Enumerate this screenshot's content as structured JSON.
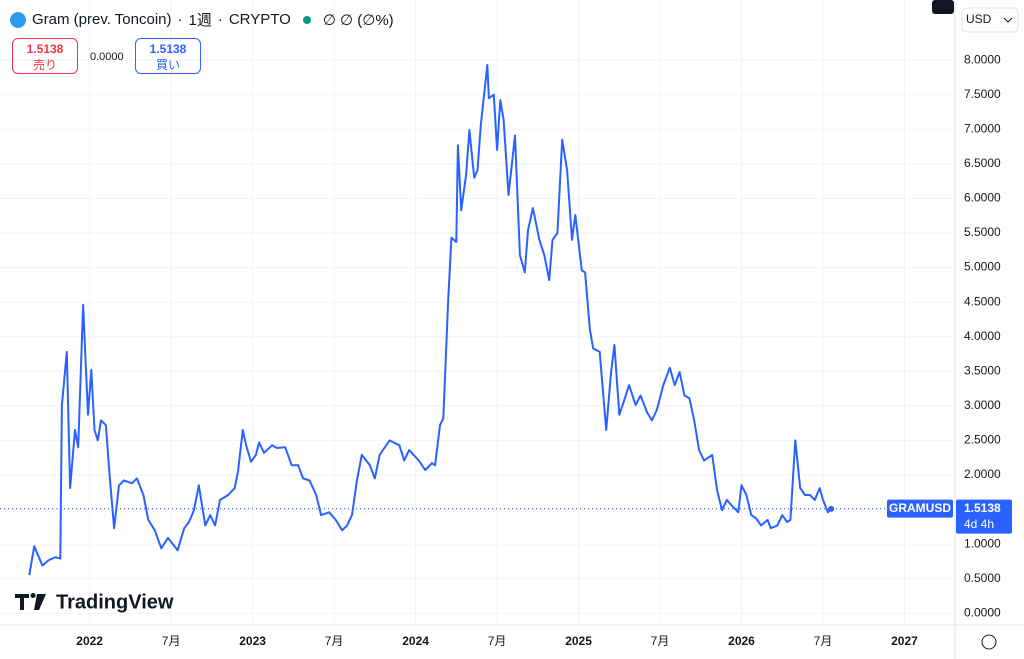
{
  "header": {
    "symbol": "Gram (prev. Toncoin)",
    "interval": "1週",
    "exchange": "CRYPTO",
    "ohlc": "∅ ∅ (∅%)",
    "sell_price": "1.5138",
    "sell_label": "売り",
    "spread": "0.0000",
    "buy_price": "1.5138",
    "buy_label": "買い",
    "currency": "USD",
    "logo": "TradingView"
  },
  "chart_data": {
    "type": "line",
    "grid": true,
    "x": [
      2021.63,
      2021.66,
      2021.71,
      2021.75,
      2021.79,
      2021.82,
      2021.83,
      2021.86,
      2021.88,
      2021.91,
      2021.93,
      2021.96,
      2021.99,
      2022.01,
      2022.03,
      2022.05,
      2022.07,
      2022.1,
      2022.12,
      2022.15,
      2022.18,
      2022.21,
      2022.26,
      2022.29,
      2022.33,
      2022.36,
      2022.4,
      2022.44,
      2022.48,
      2022.54,
      2022.58,
      2022.61,
      2022.64,
      2022.67,
      2022.71,
      2022.74,
      2022.77,
      2022.8,
      2022.85,
      2022.89,
      2022.91,
      2022.94,
      2022.96,
      2022.99,
      2023.02,
      2023.04,
      2023.07,
      2023.12,
      2023.15,
      2023.2,
      2023.24,
      2023.28,
      2023.31,
      2023.35,
      2023.39,
      2023.42,
      2023.47,
      2023.51,
      2023.55,
      2023.58,
      2023.61,
      2023.64,
      2023.67,
      2023.72,
      2023.75,
      2023.78,
      2023.84,
      2023.9,
      2023.93,
      2023.96,
      2024.02,
      2024.06,
      2024.1,
      2024.12,
      2024.15,
      2024.17,
      2024.2,
      2024.22,
      2024.25,
      2024.26,
      2024.28,
      2024.31,
      2024.33,
      2024.36,
      2024.38,
      2024.4,
      2024.44,
      2024.45,
      2024.48,
      2024.5,
      2024.52,
      2024.54,
      2024.57,
      2024.61,
      2024.64,
      2024.67,
      2024.69,
      2024.72,
      2024.76,
      2024.79,
      2024.82,
      2024.84,
      2024.87,
      2024.9,
      2024.93,
      2024.96,
      2024.98,
      2025.02,
      2025.04,
      2025.07,
      2025.09,
      2025.13,
      2025.17,
      2025.2,
      2025.22,
      2025.25,
      2025.28,
      2025.31,
      2025.35,
      2025.38,
      2025.42,
      2025.45,
      2025.48,
      2025.52,
      2025.56,
      2025.59,
      2025.62,
      2025.65,
      2025.68,
      2025.71,
      2025.74,
      2025.77,
      2025.82,
      2025.85,
      2025.88,
      2025.91,
      2025.94,
      2025.98,
      2026.0,
      2026.03,
      2026.06,
      2026.09,
      2026.12,
      2026.16,
      2026.18,
      2026.22,
      2026.25,
      2026.28,
      2026.3,
      2026.33,
      2026.36,
      2026.39,
      2026.42,
      2026.45,
      2026.48,
      2026.5,
      2026.53,
      2026.55
    ],
    "series": [
      {
        "name": "GRAMUSD",
        "color": "#2962ff",
        "values": [
          0.55,
          0.97,
          0.69,
          0.77,
          0.81,
          0.79,
          3.01,
          3.78,
          1.81,
          2.65,
          2.4,
          4.46,
          2.87,
          3.52,
          2.65,
          2.5,
          2.79,
          2.72,
          2.07,
          1.23,
          1.85,
          1.92,
          1.88,
          1.95,
          1.71,
          1.35,
          1.2,
          0.94,
          1.09,
          0.91,
          1.23,
          1.32,
          1.49,
          1.85,
          1.27,
          1.42,
          1.27,
          1.64,
          1.71,
          1.81,
          2.04,
          2.65,
          2.43,
          2.19,
          2.29,
          2.47,
          2.32,
          2.43,
          2.39,
          2.4,
          2.14,
          2.14,
          1.95,
          1.92,
          1.71,
          1.42,
          1.46,
          1.35,
          1.2,
          1.27,
          1.42,
          1.92,
          2.29,
          2.14,
          1.95,
          2.29,
          2.5,
          2.43,
          2.21,
          2.36,
          2.21,
          2.07,
          2.17,
          2.14,
          2.72,
          2.82,
          4.53,
          5.43,
          5.37,
          6.77,
          5.83,
          6.34,
          6.99,
          6.3,
          6.41,
          7.06,
          7.93,
          7.45,
          7.5,
          6.7,
          7.42,
          7.14,
          6.05,
          6.91,
          5.18,
          4.93,
          5.54,
          5.86,
          5.4,
          5.18,
          4.82,
          5.4,
          5.5,
          6.85,
          6.41,
          5.4,
          5.76,
          4.96,
          4.93,
          4.1,
          3.83,
          3.78,
          2.65,
          3.49,
          3.88,
          2.87,
          3.08,
          3.3,
          3.01,
          3.15,
          2.91,
          2.79,
          2.94,
          3.3,
          3.55,
          3.3,
          3.49,
          3.15,
          3.11,
          2.79,
          2.36,
          2.21,
          2.29,
          1.78,
          1.49,
          1.64,
          1.56,
          1.46,
          1.85,
          1.71,
          1.42,
          1.37,
          1.27,
          1.35,
          1.23,
          1.27,
          1.42,
          1.32,
          1.35,
          2.5,
          1.81,
          1.71,
          1.71,
          1.64,
          1.81,
          1.64,
          1.46,
          1.51
        ]
      }
    ],
    "last_price": 1.5138,
    "countdown": "4d 4h",
    "xlim": [
      2021.45,
      2027.31
    ],
    "ylim": [
      -0.17,
      8.87
    ],
    "xticks": [
      2022,
      {
        "value": 2022.5,
        "label": "7月"
      },
      2023,
      {
        "value": 2023.5,
        "label": "7月"
      },
      2024,
      {
        "value": 2024.5,
        "label": "7月"
      },
      2025,
      {
        "value": 2025.5,
        "label": "7月"
      },
      2026,
      {
        "value": 2026.5,
        "label": "7月"
      },
      2027
    ],
    "yticks": [
      {
        "value": 0,
        "label": "0.0000"
      },
      {
        "value": 0.5,
        "label": "0.5000"
      },
      {
        "value": 1,
        "label": "1.0000"
      },
      {
        "value": 1.5,
        "label": "1.5000"
      },
      {
        "value": 2,
        "label": "2.0000"
      },
      {
        "value": 2.5,
        "label": "2.5000"
      },
      {
        "value": 3,
        "label": "3.0000"
      },
      {
        "value": 3.5,
        "label": "3.5000"
      },
      {
        "value": 4,
        "label": "4.0000"
      },
      {
        "value": 4.5,
        "label": "4.5000"
      },
      {
        "value": 5,
        "label": "5.0000"
      },
      {
        "value": 5.5,
        "label": "5.5000"
      },
      {
        "value": 6,
        "label": "6.0000"
      },
      {
        "value": 6.5,
        "label": "6.5000"
      },
      {
        "value": 7,
        "label": "7.0000"
      },
      {
        "value": 7.5,
        "label": "7.5000"
      },
      {
        "value": 8,
        "label": "8.0000"
      }
    ]
  }
}
